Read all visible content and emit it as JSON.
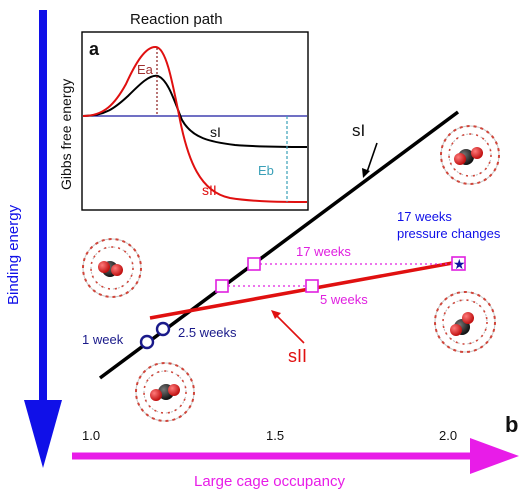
{
  "panel_b_label": "b",
  "y_axis_label": "Binding energy",
  "x_axis_label": "Large cage occupancy",
  "x_ticks": [
    "1.0",
    "1.5",
    "2.0"
  ],
  "line_labels": {
    "sI": "sI",
    "sII": "sII"
  },
  "annotations": {
    "week1": "1 week",
    "week2_5": "2.5 weeks",
    "week5": "5 weeks",
    "week17_mid": "17 weeks",
    "week17_top": "17 weeks",
    "pressure": "pressure changes"
  },
  "inset": {
    "title": "Reaction path",
    "panel_label": "a",
    "y_label": "Gibbs free energy",
    "curve_sI": "sI",
    "curve_sII": "sII",
    "ea": "Ea",
    "eb": "Eb"
  },
  "colors": {
    "axis_arrow_y": "#1010e8",
    "axis_arrow_x": "#e81ce8",
    "sI_line": "#000000",
    "sII_line": "#e01010",
    "markers": "#e020e0",
    "week_markers": "#1a1a8a",
    "eb": "#3aa0b8"
  }
}
